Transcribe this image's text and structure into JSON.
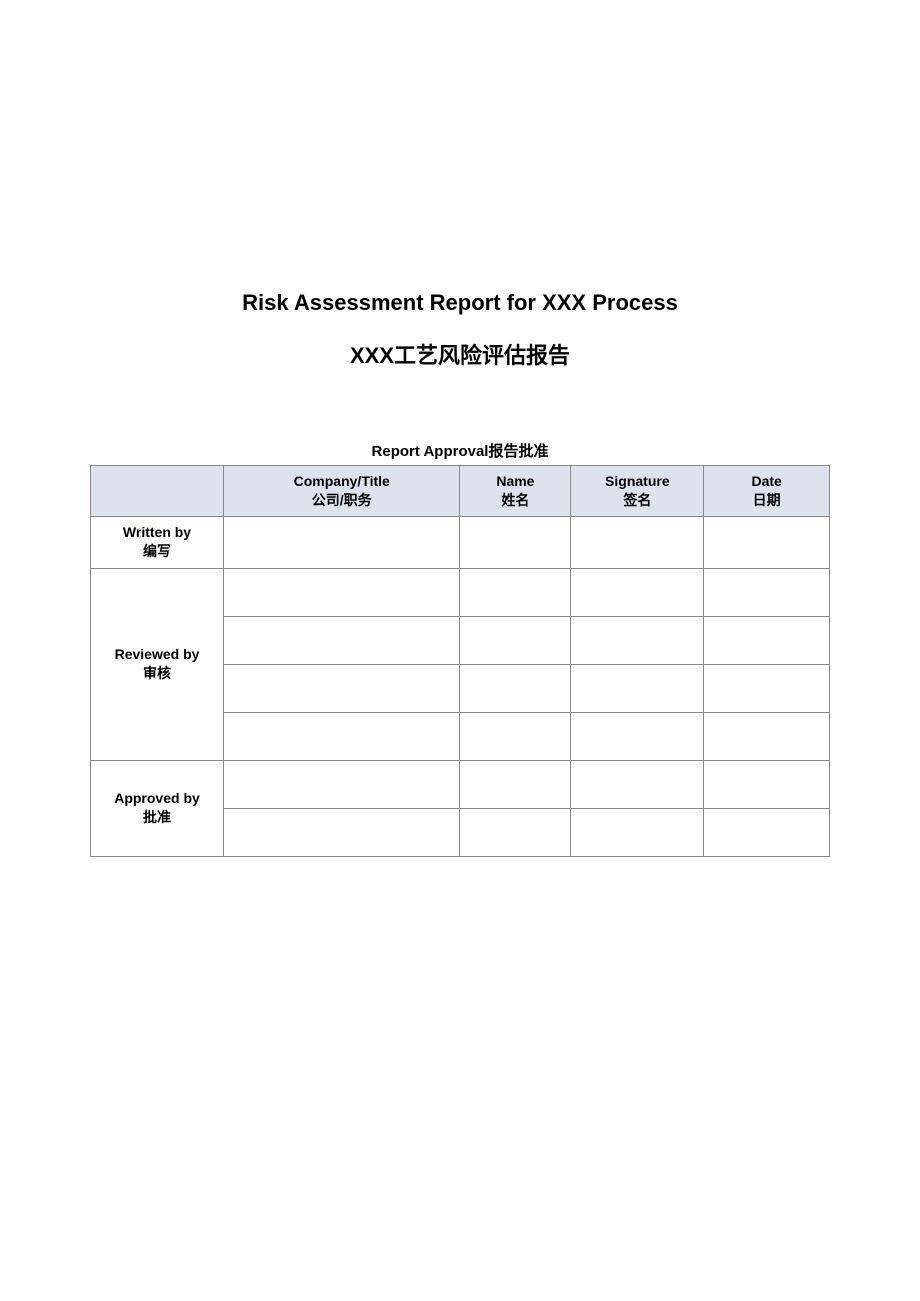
{
  "title_en": "Risk Assessment Report for XXX Process",
  "title_cn": "XXX工艺风险评估报告",
  "table_caption": "Report Approval报告批准",
  "columns": {
    "role_blank": "",
    "company_en": "Company/Title",
    "company_cn": "公司/职务",
    "name_en": "Name",
    "name_cn": "姓名",
    "signature_en": "Signature",
    "signature_cn": "签名",
    "date_en": "Date",
    "date_cn": "日期"
  },
  "roles": {
    "written_en": "Written by",
    "written_cn": "编写",
    "reviewed_en": "Reviewed by",
    "reviewed_cn": "审核",
    "approved_en": "Approved by",
    "approved_cn": "批准"
  },
  "colors": {
    "header_bg": "#dce3ec",
    "border": "#888888",
    "text": "#000000",
    "page_bg": "#ffffff"
  }
}
